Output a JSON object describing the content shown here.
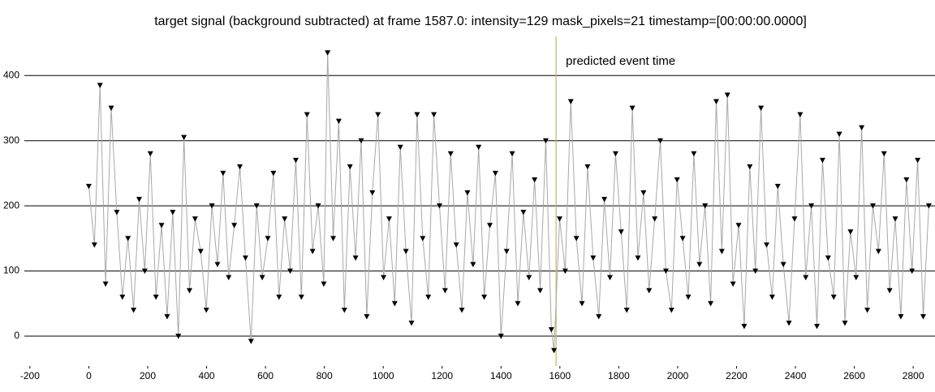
{
  "chart_data": {
    "type": "line",
    "title": "target signal (background subtracted) at frame 1587.0: intensity=129 mask_pixels=21 timestamp=[00:00:00.0000]",
    "x": [
      0,
      19,
      38,
      57,
      76,
      95,
      114,
      133,
      152,
      171,
      190,
      209,
      228,
      247,
      266,
      285,
      304,
      323,
      342,
      361,
      380,
      399,
      418,
      437,
      456,
      475,
      494,
      513,
      532,
      551,
      570,
      589,
      608,
      627,
      646,
      665,
      684,
      703,
      722,
      741,
      760,
      779,
      798,
      811,
      830,
      849,
      868,
      887,
      906,
      925,
      944,
      963,
      982,
      1001,
      1020,
      1039,
      1058,
      1077,
      1096,
      1115,
      1134,
      1153,
      1172,
      1191,
      1210,
      1229,
      1248,
      1267,
      1286,
      1305,
      1324,
      1343,
      1362,
      1381,
      1400,
      1419,
      1438,
      1457,
      1476,
      1495,
      1514,
      1533,
      1552,
      1571,
      1580,
      1599,
      1618,
      1637,
      1656,
      1675,
      1694,
      1713,
      1732,
      1751,
      1770,
      1789,
      1808,
      1827,
      1846,
      1865,
      1884,
      1903,
      1922,
      1941,
      1960,
      1979,
      1998,
      2017,
      2036,
      2055,
      2074,
      2093,
      2112,
      2131,
      2150,
      2169,
      2188,
      2207,
      2226,
      2245,
      2264,
      2283,
      2302,
      2321,
      2340,
      2359,
      2378,
      2397,
      2416,
      2435,
      2454,
      2473,
      2492,
      2511,
      2530,
      2549,
      2568,
      2587,
      2606,
      2625,
      2644,
      2663,
      2682,
      2701,
      2720,
      2739,
      2758,
      2777,
      2796,
      2815,
      2834,
      2853
    ],
    "values": [
      230,
      140,
      385,
      80,
      350,
      190,
      60,
      150,
      40,
      210,
      100,
      280,
      60,
      170,
      30,
      190,
      0,
      305,
      70,
      180,
      130,
      40,
      200,
      110,
      250,
      90,
      170,
      260,
      120,
      -8,
      200,
      90,
      150,
      250,
      60,
      180,
      100,
      270,
      60,
      340,
      130,
      200,
      80,
      435,
      150,
      330,
      40,
      260,
      120,
      300,
      30,
      220,
      340,
      90,
      180,
      50,
      290,
      130,
      20,
      340,
      150,
      60,
      340,
      200,
      70,
      280,
      140,
      40,
      220,
      110,
      290,
      60,
      170,
      250,
      0,
      130,
      280,
      50,
      190,
      90,
      240,
      70,
      300,
      10,
      -22,
      180,
      100,
      360,
      150,
      50,
      260,
      120,
      30,
      210,
      90,
      280,
      160,
      40,
      350,
      120,
      220,
      70,
      180,
      300,
      100,
      40,
      240,
      150,
      60,
      280,
      110,
      200,
      50,
      360,
      130,
      370,
      80,
      170,
      15,
      260,
      100,
      350,
      140,
      60,
      230,
      110,
      20,
      180,
      340,
      90,
      200,
      15,
      270,
      120,
      60,
      310,
      20,
      160,
      90,
      320,
      40,
      200,
      130,
      280,
      70,
      180,
      30,
      240,
      100,
      270,
      30,
      200
    ],
    "color": "#000000",
    "line_color": "#a8a8a8",
    "xlim": [
      -219,
      2874
    ],
    "ylim": [
      -46,
      460
    ],
    "xticks": [
      -200,
      0,
      200,
      400,
      600,
      800,
      1000,
      1200,
      1400,
      1600,
      1800,
      2000,
      2200,
      2400,
      2600,
      2800
    ],
    "yticks": [
      0,
      100,
      200,
      300,
      400
    ],
    "grid": "y",
    "annotation": {
      "text": "predicted event time",
      "x": 1587,
      "color": "#c8b860"
    }
  }
}
